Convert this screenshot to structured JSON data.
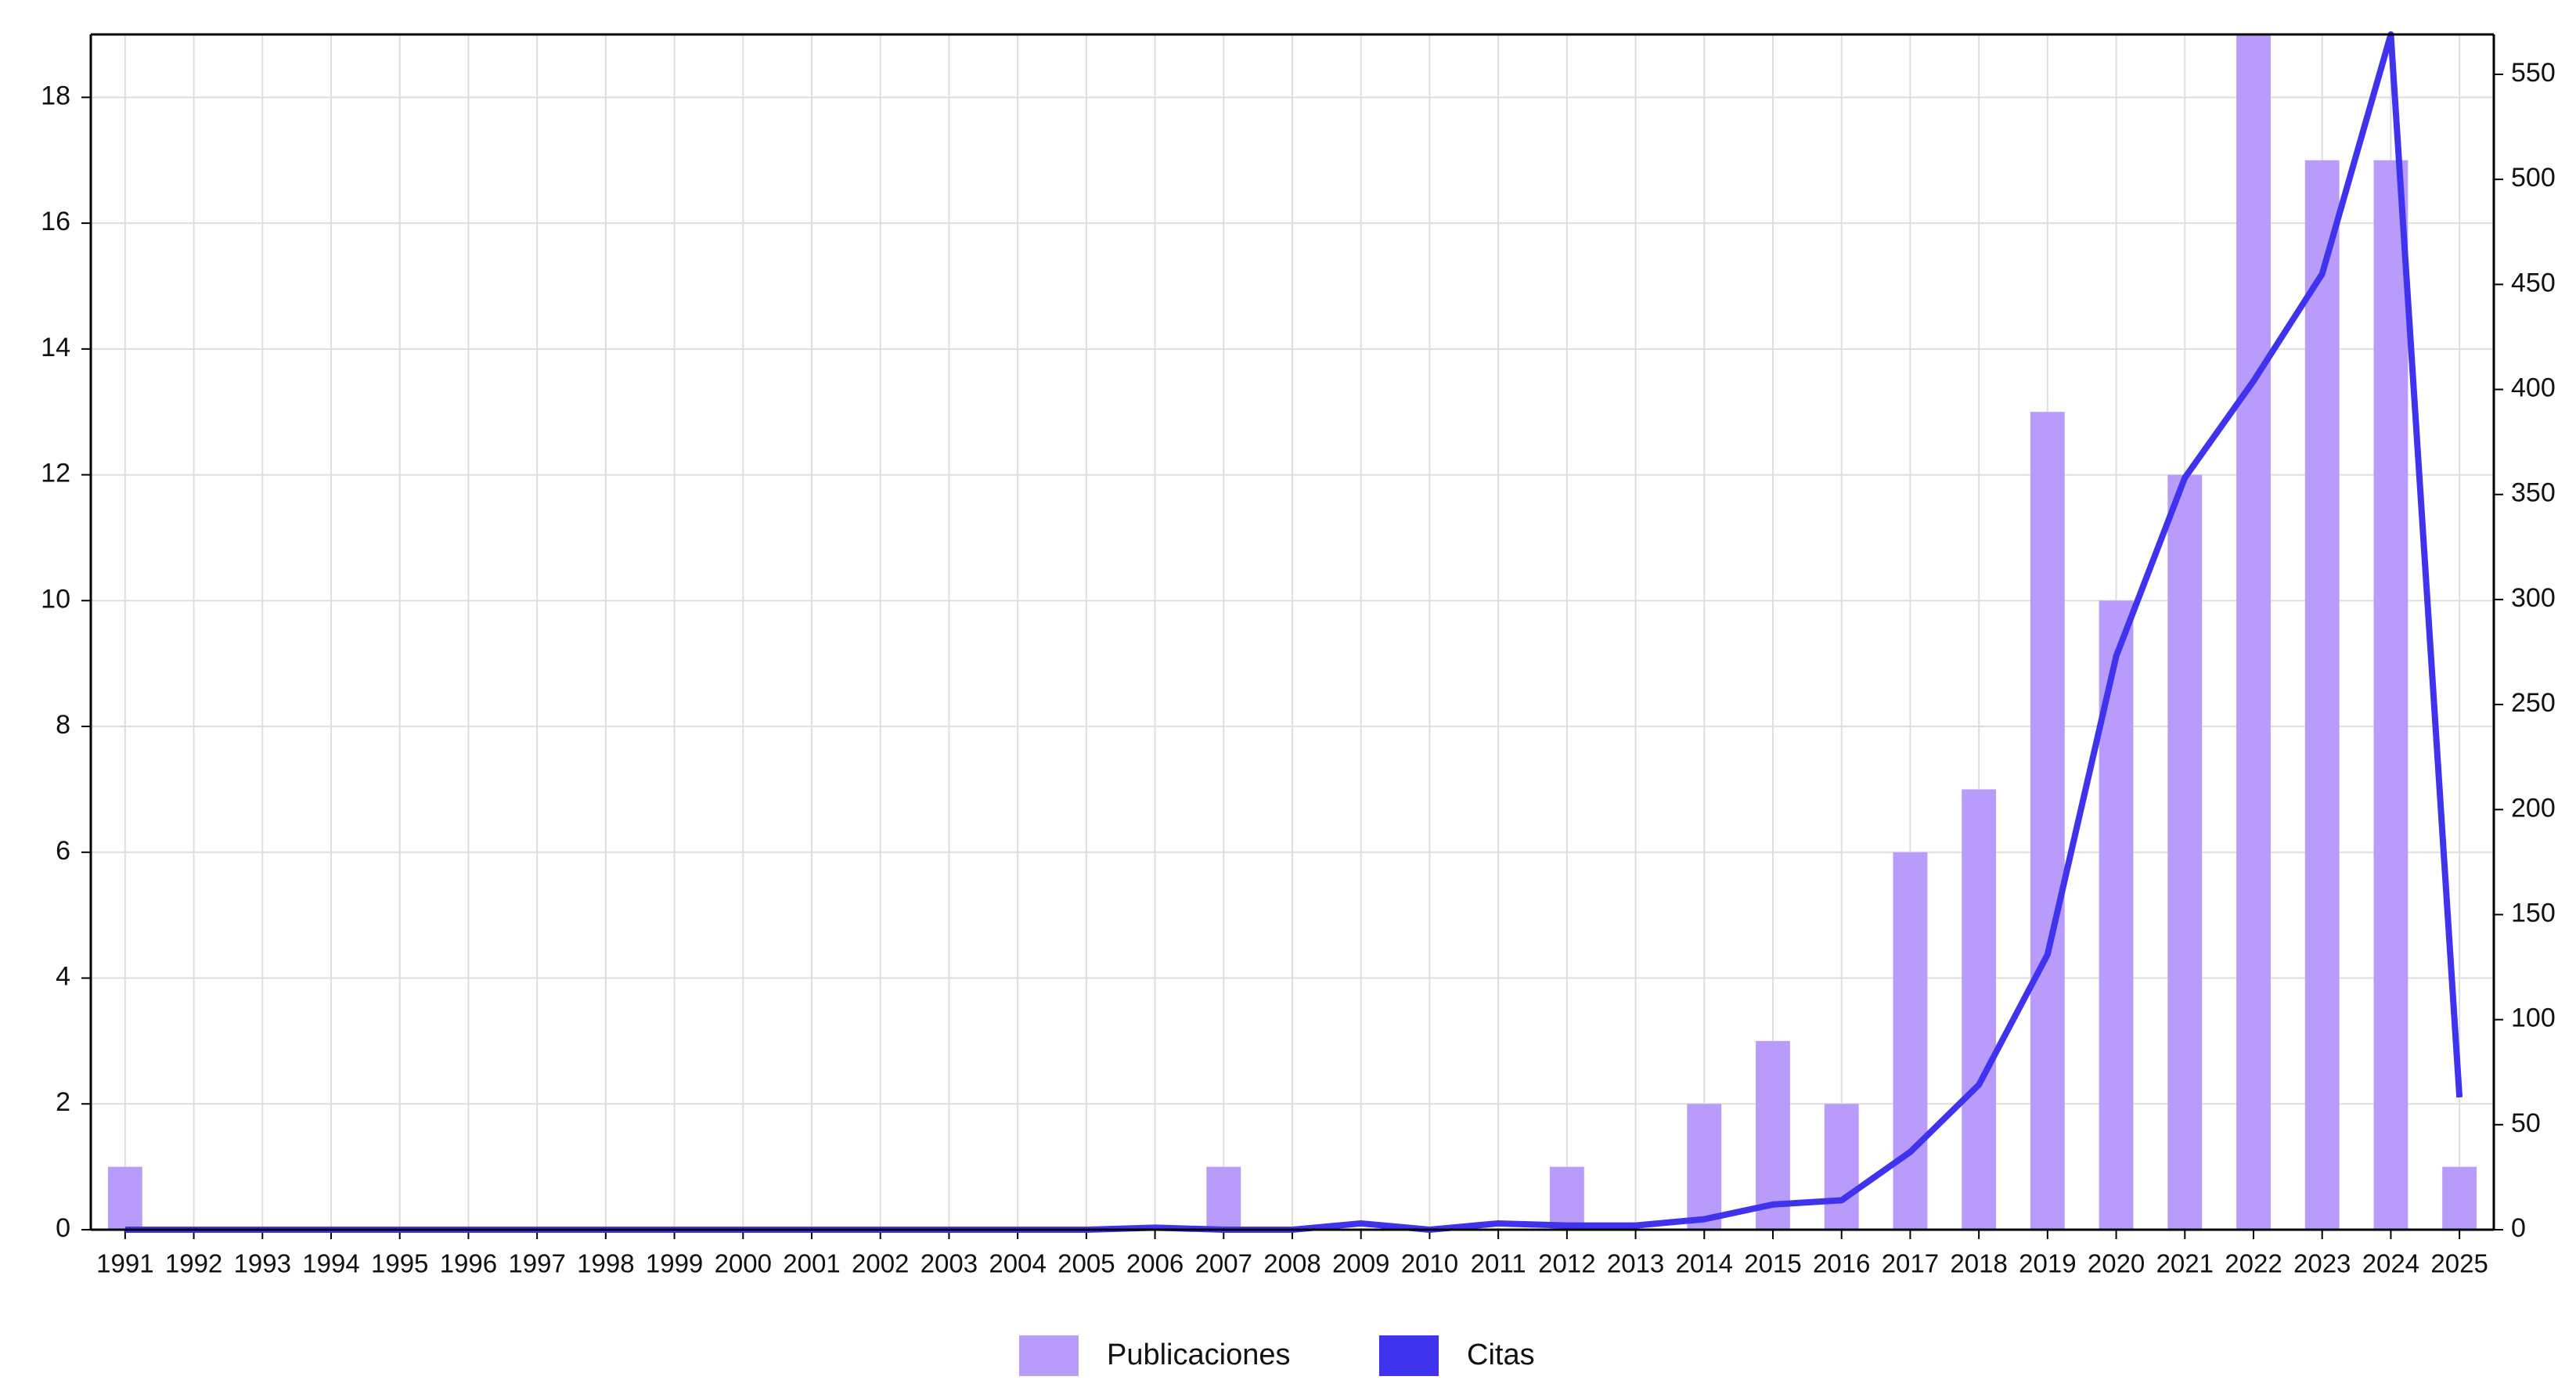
{
  "chart_data": {
    "type": "bar",
    "categories": [
      "1991",
      "1992",
      "1993",
      "1994",
      "1995",
      "1996",
      "1997",
      "1998",
      "1999",
      "2000",
      "2001",
      "2002",
      "2003",
      "2004",
      "2005",
      "2006",
      "2007",
      "2008",
      "2009",
      "2010",
      "2011",
      "2012",
      "2013",
      "2014",
      "2015",
      "2016",
      "2017",
      "2018",
      "2019",
      "2020",
      "2021",
      "2022",
      "2023",
      "2024",
      "2025"
    ],
    "series": [
      {
        "name": "Publicaciones",
        "type": "bar",
        "color": "#b99bfc",
        "values": [
          1,
          0,
          0,
          0,
          0,
          0,
          0,
          0,
          0,
          0,
          0,
          0,
          0,
          0,
          0,
          0,
          1,
          0,
          0,
          0,
          0,
          1,
          0,
          2,
          3,
          2,
          6,
          7,
          13,
          10,
          12,
          19,
          17,
          17,
          1
        ]
      },
      {
        "name": "Citas",
        "type": "line",
        "color": "#3f33ee",
        "axis": "y2",
        "values": [
          0,
          0,
          0,
          0,
          0,
          0,
          0,
          0,
          0,
          0,
          0,
          0,
          0,
          0,
          0,
          1,
          0,
          0,
          3,
          0,
          3,
          2,
          2,
          5,
          12,
          14,
          37,
          69,
          131,
          273,
          358,
          404,
          455,
          569,
          63
        ]
      }
    ],
    "ylim": [
      0,
      19
    ],
    "yticks": [
      0,
      2,
      4,
      6,
      8,
      10,
      12,
      14,
      16,
      18
    ],
    "y2lim": [
      0,
      569
    ],
    "y2ticks": [
      0,
      50,
      100,
      150,
      200,
      250,
      300,
      350,
      400,
      450,
      500,
      550
    ],
    "grid": true,
    "legend": "bottom"
  }
}
